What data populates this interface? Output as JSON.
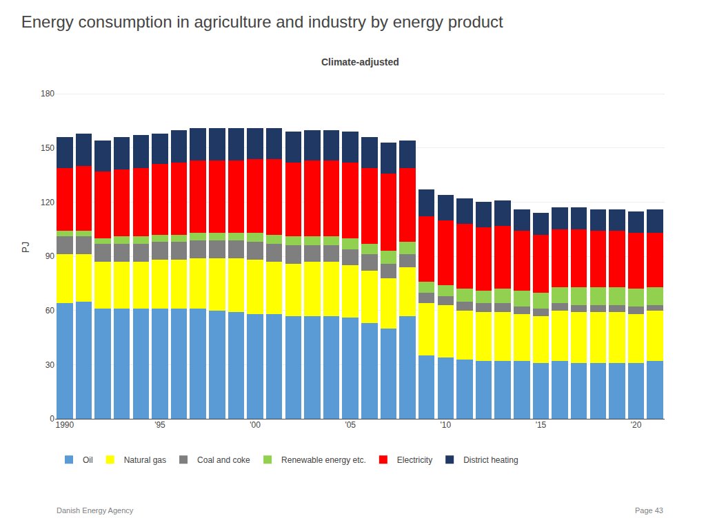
{
  "chart_data": {
    "type": "bar",
    "stacked": true,
    "title": "Energy consumption in agriculture and industry by energy product",
    "subtitle": "Climate-adjusted",
    "y_label": "PJ",
    "categories": [
      "1990",
      null,
      null,
      null,
      null,
      "'95",
      null,
      null,
      null,
      null,
      "'00",
      null,
      null,
      null,
      null,
      "'05",
      null,
      null,
      null,
      null,
      "'10",
      null,
      null,
      null,
      null,
      "'15",
      null,
      null,
      null,
      null,
      "'20",
      null
    ],
    "series": [
      {
        "name": "Oil",
        "color": "#5B9BD5",
        "values": [
          64,
          65,
          61,
          61,
          61,
          61,
          61,
          61,
          60,
          59,
          58,
          58,
          57,
          57,
          57,
          56,
          53,
          50,
          57,
          35,
          34,
          33,
          32,
          32,
          32,
          31,
          32,
          31,
          31,
          31,
          31,
          32
        ]
      },
      {
        "name": "Natural gas",
        "color": "#FFFF00",
        "values": [
          27,
          26,
          26,
          26,
          26,
          27,
          27,
          28,
          29,
          30,
          30,
          29,
          29,
          30,
          30,
          29,
          29,
          28,
          27,
          29,
          29,
          27,
          27,
          27,
          26,
          26,
          28,
          28,
          28,
          28,
          27,
          28
        ]
      },
      {
        "name": "Coal and coke",
        "color": "#7F7F7F",
        "values": [
          10,
          10,
          10,
          10,
          10,
          10,
          10,
          10,
          10,
          10,
          10,
          10,
          10,
          9,
          9,
          9,
          9,
          8,
          7,
          6,
          5,
          5,
          5,
          5,
          4,
          4,
          4,
          4,
          4,
          4,
          4,
          3
        ]
      },
      {
        "name": "Renewable energy etc.",
        "color": "#92D050",
        "values": [
          3,
          3,
          3,
          4,
          4,
          4,
          4,
          4,
          4,
          4,
          5,
          5,
          5,
          5,
          5,
          6,
          6,
          7,
          7,
          6,
          6,
          7,
          7,
          8,
          9,
          9,
          9,
          10,
          10,
          10,
          10,
          10
        ]
      },
      {
        "name": "Electricity",
        "color": "#FF0000",
        "values": [
          35,
          36,
          37,
          37,
          38,
          39,
          40,
          40,
          40,
          40,
          41,
          42,
          41,
          42,
          42,
          42,
          42,
          43,
          41,
          36,
          36,
          36,
          35,
          35,
          33,
          32,
          32,
          32,
          31,
          31,
          31,
          30
        ]
      },
      {
        "name": "District heating",
        "color": "#1F3864",
        "values": [
          17,
          18,
          17,
          18,
          18,
          17,
          18,
          18,
          18,
          18,
          17,
          17,
          17,
          17,
          17,
          17,
          17,
          17,
          15,
          15,
          14,
          14,
          14,
          14,
          12,
          12,
          12,
          12,
          12,
          12,
          12,
          13
        ]
      }
    ],
    "ylim": [
      0,
      190
    ],
    "yticks": [
      0,
      30,
      60,
      90,
      120,
      150,
      180
    ],
    "grid": true,
    "legend": "bottom",
    "annotations": [
      "Danish Energy Agency",
      "Page 43"
    ]
  }
}
